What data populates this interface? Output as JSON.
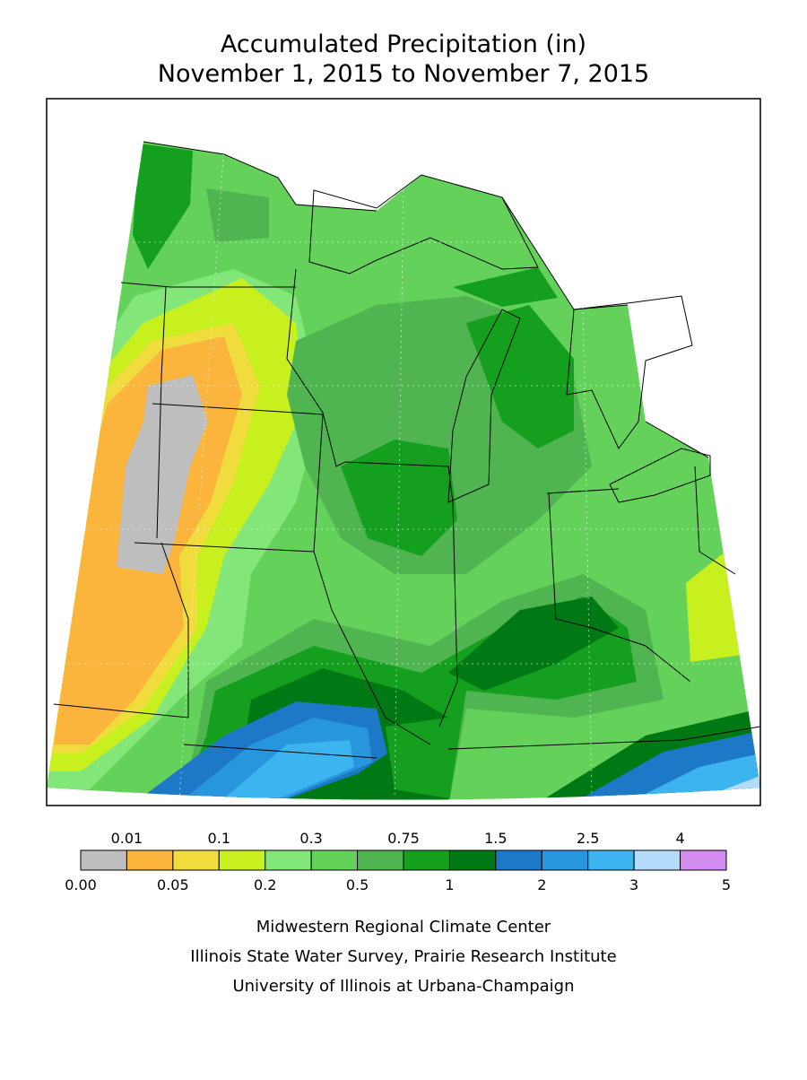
{
  "title": {
    "line1": "Accumulated Precipitation (in)",
    "line2": "November 1, 2015 to November 7, 2015"
  },
  "legend": {
    "colors": [
      "#bebebe",
      "#fbb43c",
      "#f0dc3c",
      "#c8f01e",
      "#82e678",
      "#64d25a",
      "#50b450",
      "#14a01e",
      "#007814",
      "#1e78c8",
      "#2896dc",
      "#3cb4f0",
      "#b4dcfa",
      "#d28cf0"
    ],
    "upper_labels": [
      "0.01",
      "0.1",
      "0.3",
      "0.75",
      "1.5",
      "2.5",
      "4"
    ],
    "lower_labels": [
      "0.00",
      "0.05",
      "0.2",
      "0.5",
      "1",
      "2",
      "3",
      "5"
    ]
  },
  "credits": [
    "Midwestern Regional Climate Center",
    "Illinois State Water Survey, Prairie Research Institute",
    "University of Illinois at Urbana-Champaign"
  ]
}
